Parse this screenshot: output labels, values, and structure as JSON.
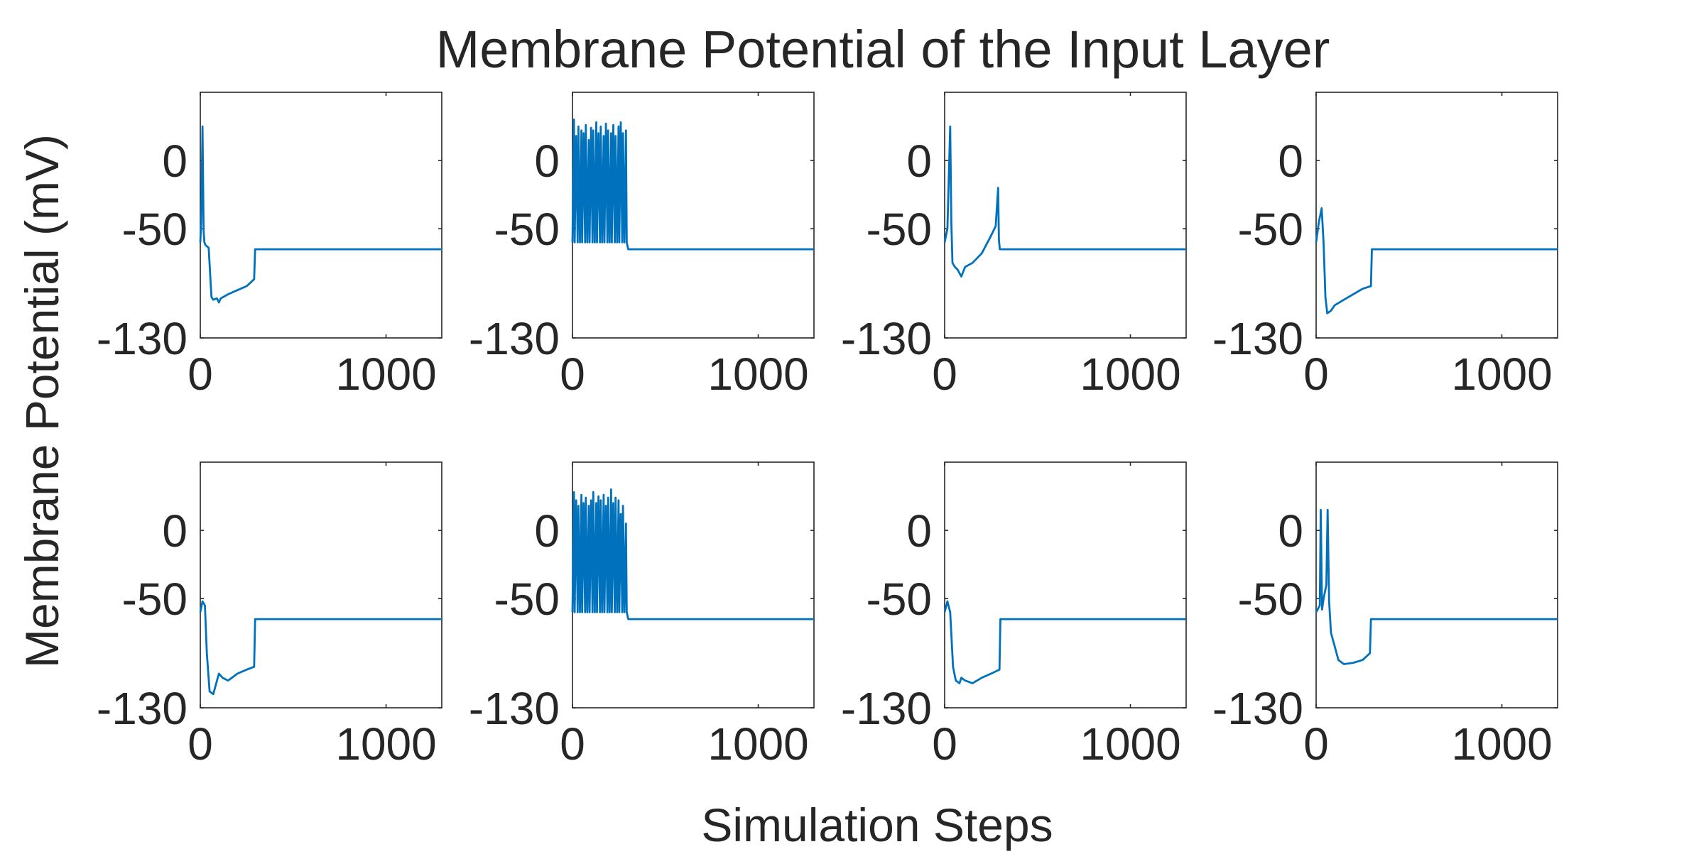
{
  "chart_data": {
    "type": "line",
    "title": "Membrane Potential of the Input Layer",
    "xlabel": "Simulation Steps",
    "ylabel": "Membrane Potential (mV)",
    "grid": false,
    "line_color": "#0072BD",
    "xlim": [
      0,
      1300
    ],
    "ylim": [
      -130,
      50
    ],
    "xticks": [
      0,
      1000
    ],
    "yticks": [
      -130,
      -50,
      0
    ],
    "xtick_labels": [
      "0",
      "1000"
    ],
    "ytick_labels": [
      "-130",
      "-50",
      "0"
    ],
    "layout_grid": {
      "rows": 2,
      "cols": 4
    },
    "subplots": [
      {
        "x": [
          0,
          5,
          12,
          18,
          22,
          28,
          45,
          60,
          70,
          90,
          100,
          110,
          150,
          200,
          250,
          290,
          295,
          300,
          1300
        ],
        "y": [
          -60,
          -45,
          25,
          -52,
          -60,
          -62,
          -64,
          -100,
          -102,
          -101,
          -104,
          -101,
          -98,
          -95,
          -92,
          -87,
          -65,
          -65,
          -65
        ]
      },
      {
        "x": [
          0,
          8,
          12,
          20,
          28,
          32,
          40,
          48,
          52,
          60,
          68,
          72,
          80,
          88,
          92,
          100,
          108,
          112,
          120,
          128,
          132,
          140,
          148,
          152,
          160,
          168,
          172,
          180,
          188,
          192,
          200,
          208,
          212,
          220,
          228,
          232,
          240,
          248,
          252,
          260,
          268,
          272,
          280,
          288,
          292,
          300,
          1300
        ],
        "y": [
          -60,
          30,
          -60,
          18,
          -60,
          25,
          -60,
          22,
          -60,
          20,
          -60,
          26,
          -60,
          15,
          -60,
          24,
          -60,
          22,
          -60,
          28,
          -60,
          20,
          -60,
          25,
          -60,
          18,
          -60,
          27,
          -60,
          22,
          -60,
          20,
          -60,
          26,
          -60,
          18,
          -60,
          25,
          -60,
          28,
          -60,
          20,
          -60,
          22,
          -60,
          -65,
          -65
        ]
      },
      {
        "x": [
          0,
          15,
          30,
          36,
          42,
          55,
          70,
          90,
          110,
          150,
          200,
          250,
          275,
          288,
          292,
          297,
          300,
          1300
        ],
        "y": [
          -60,
          -50,
          25,
          -45,
          -75,
          -78,
          -80,
          -85,
          -78,
          -75,
          -68,
          -55,
          -48,
          -20,
          -58,
          -65,
          -65,
          -65
        ]
      },
      {
        "x": [
          0,
          15,
          30,
          40,
          50,
          60,
          80,
          100,
          150,
          200,
          250,
          295,
          300,
          1300
        ],
        "y": [
          -60,
          -45,
          -35,
          -60,
          -100,
          -112,
          -110,
          -106,
          -102,
          -98,
          -94,
          -92,
          -65,
          -65
        ]
      },
      {
        "x": [
          0,
          12,
          25,
          35,
          50,
          70,
          90,
          100,
          120,
          150,
          200,
          250,
          290,
          295,
          300,
          1300
        ],
        "y": [
          -60,
          -52,
          -55,
          -90,
          -118,
          -120,
          -110,
          -105,
          -108,
          -110,
          -105,
          -102,
          -100,
          -65,
          -65,
          -65
        ]
      },
      {
        "x": [
          0,
          8,
          12,
          20,
          28,
          32,
          40,
          48,
          52,
          60,
          68,
          72,
          80,
          88,
          92,
          100,
          108,
          112,
          120,
          128,
          132,
          140,
          148,
          152,
          160,
          168,
          172,
          180,
          188,
          192,
          200,
          208,
          212,
          220,
          228,
          232,
          240,
          248,
          252,
          260,
          268,
          272,
          280,
          288,
          292,
          300,
          1300
        ],
        "y": [
          -60,
          28,
          -60,
          22,
          -60,
          18,
          -60,
          26,
          -60,
          20,
          -60,
          24,
          -60,
          18,
          -60,
          22,
          -60,
          28,
          -60,
          20,
          -60,
          25,
          -60,
          22,
          -60,
          26,
          -60,
          18,
          -60,
          24,
          -60,
          30,
          -60,
          20,
          -60,
          24,
          -60,
          22,
          -60,
          12,
          -60,
          18,
          -60,
          5,
          -60,
          -65,
          -65
        ]
      },
      {
        "x": [
          0,
          15,
          30,
          45,
          60,
          80,
          90,
          110,
          150,
          200,
          250,
          295,
          300,
          1300
        ],
        "y": [
          -60,
          -52,
          -60,
          -100,
          -110,
          -112,
          -108,
          -110,
          -112,
          -108,
          -105,
          -102,
          -65,
          -65
        ]
      },
      {
        "x": [
          0,
          20,
          25,
          32,
          40,
          55,
          62,
          70,
          80,
          100,
          120,
          150,
          200,
          250,
          290,
          295,
          300,
          1300
        ],
        "y": [
          -60,
          -55,
          15,
          -58,
          -50,
          -40,
          15,
          -52,
          -75,
          -85,
          -95,
          -98,
          -97,
          -95,
          -90,
          -65,
          -65,
          -65
        ]
      }
    ]
  }
}
